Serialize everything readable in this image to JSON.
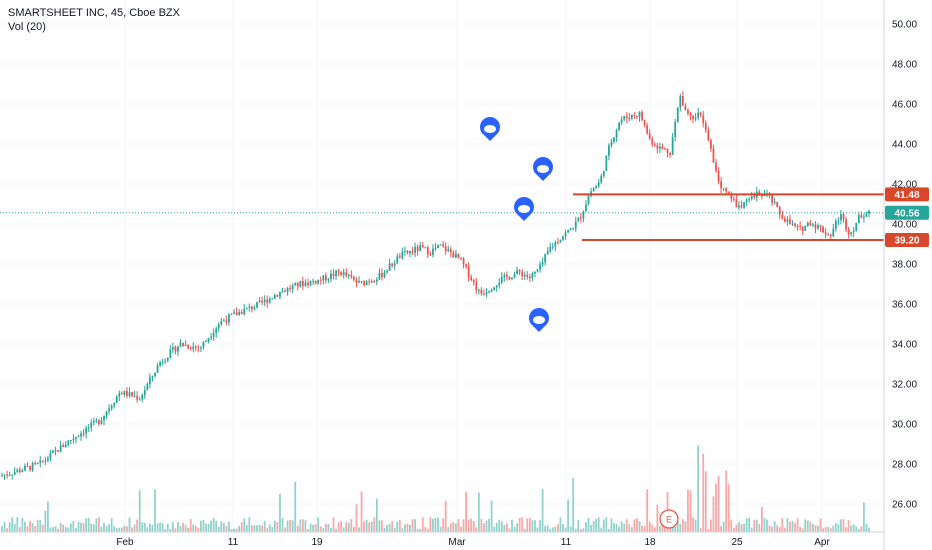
{
  "header": {
    "title": "SMARTSHEET INC, 45, Cboe BZX",
    "volume_label": "Vol (20)"
  },
  "chart_data": {
    "type": "candlestick",
    "title": "SMARTSHEET INC, 45, Cboe BZX",
    "y_axis": {
      "ticks": [
        26,
        28,
        30,
        32,
        34,
        36,
        38,
        40,
        42,
        44,
        46,
        48,
        50
      ],
      "ylim": [
        24.6,
        51.2
      ],
      "position": "right"
    },
    "x_axis": {
      "labels": [
        "Feb",
        "11",
        "19",
        "Mar",
        "11",
        "18",
        "25",
        "Apr"
      ]
    },
    "grid": true,
    "colors": {
      "up": "#26a69a",
      "down": "#ef5350",
      "level_line": "#d9472b",
      "last_price": "#26a69a",
      "event_marker": "#2962ff"
    },
    "last_price": 40.56,
    "levels": [
      {
        "value": 41.48,
        "label": "41.48"
      },
      {
        "value": 39.2,
        "label": "39.20"
      }
    ],
    "event_markers": 5,
    "earnings_marker_label": "E",
    "price_path": [
      [
        0,
        27.4
      ],
      [
        4,
        28.0
      ],
      [
        7,
        29.2
      ],
      [
        10,
        30.2
      ],
      [
        12,
        31.6
      ],
      [
        14,
        31.3
      ],
      [
        16,
        33.1
      ],
      [
        18,
        34.0
      ],
      [
        20,
        33.8
      ],
      [
        22,
        35.1
      ],
      [
        24,
        35.6
      ],
      [
        26,
        36.0
      ],
      [
        28,
        36.6
      ],
      [
        30,
        37.0
      ],
      [
        32,
        37.2
      ],
      [
        34,
        37.6
      ],
      [
        36,
        37.0
      ],
      [
        38,
        37.4
      ],
      [
        40,
        38.4
      ],
      [
        42,
        38.8
      ],
      [
        43,
        38.6
      ],
      [
        44,
        38.9
      ],
      [
        45,
        38.6
      ],
      [
        46,
        38.2
      ],
      [
        47,
        37.4
      ],
      [
        48,
        36.5
      ],
      [
        49,
        36.8
      ],
      [
        50,
        37.2
      ],
      [
        52,
        37.6
      ],
      [
        53,
        37.3
      ],
      [
        54,
        37.8
      ],
      [
        55,
        38.8
      ],
      [
        56,
        39.3
      ],
      [
        57,
        39.7
      ],
      [
        58,
        40.3
      ],
      [
        59,
        41.6
      ],
      [
        60,
        42.1
      ],
      [
        61,
        44.0
      ],
      [
        62,
        45.2
      ],
      [
        63,
        45.4
      ],
      [
        64,
        45.5
      ],
      [
        65,
        44.2
      ],
      [
        66,
        43.8
      ],
      [
        67,
        43.6
      ],
      [
        68,
        46.4
      ],
      [
        69,
        45.3
      ],
      [
        70,
        45.6
      ],
      [
        71,
        43.8
      ],
      [
        72,
        42.0
      ],
      [
        73,
        41.3
      ],
      [
        74,
        40.8
      ],
      [
        75,
        41.2
      ],
      [
        76,
        41.6
      ],
      [
        77,
        41.3
      ],
      [
        78,
        40.5
      ],
      [
        79,
        40.0
      ],
      [
        80,
        39.7
      ],
      [
        81,
        40.1
      ],
      [
        82,
        39.8
      ],
      [
        83,
        39.4
      ],
      [
        84,
        40.5
      ],
      [
        85,
        39.5
      ],
      [
        86,
        40.4
      ],
      [
        87,
        40.7
      ]
    ],
    "volume": {
      "ylim": [
        0,
        1
      ]
    }
  }
}
